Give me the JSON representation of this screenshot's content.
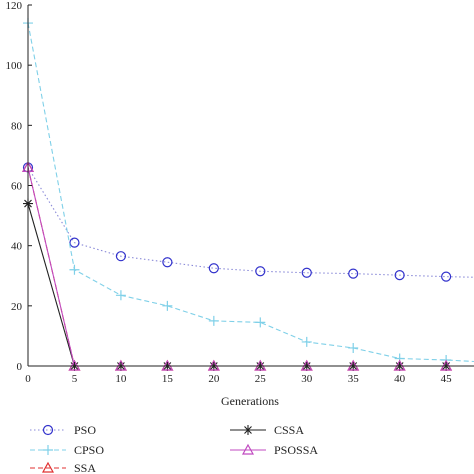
{
  "chart_data": {
    "type": "line",
    "title": "",
    "xlabel": "Generations",
    "ylabel": "",
    "xlim": [
      0,
      48
    ],
    "ylim": [
      0,
      120
    ],
    "xticks": [
      0,
      5,
      10,
      15,
      20,
      25,
      30,
      35,
      40,
      45
    ],
    "yticks": [
      0,
      20,
      40,
      60,
      80,
      100,
      120
    ],
    "grid": false,
    "legend_position": "bottom",
    "series": [
      {
        "name": "PSO",
        "color": "#8a8ad8",
        "line_style": "dotted",
        "marker": "circle",
        "marker_color": "#3333cc",
        "x": [
          0,
          5,
          10,
          15,
          20,
          25,
          30,
          35,
          40,
          45,
          48
        ],
        "y": [
          66,
          41,
          36.5,
          34.5,
          32.5,
          31.5,
          31,
          30.7,
          30.2,
          29.7,
          29.5
        ]
      },
      {
        "name": "CPSO",
        "color": "#7fd0e8",
        "line_style": "dashed",
        "marker": "plus",
        "marker_color": "#7fd0e8",
        "x": [
          0,
          5,
          10,
          15,
          20,
          25,
          30,
          35,
          40,
          45,
          48
        ],
        "y": [
          114,
          32,
          23.5,
          20,
          15,
          14.5,
          8,
          6,
          2.5,
          2,
          1.5
        ]
      },
      {
        "name": "SSA",
        "color": "#e03030",
        "line_style": "dashed",
        "marker": "triangle",
        "marker_color": "#e03030",
        "x": [
          0,
          5,
          10,
          15,
          20,
          25,
          30,
          35,
          40,
          45,
          48
        ],
        "y": [
          66,
          0,
          0,
          0,
          0,
          0,
          0,
          0,
          0,
          0,
          0
        ]
      },
      {
        "name": "CSSA",
        "color": "#222222",
        "line_style": "solid",
        "marker": "asterisk",
        "marker_color": "#222222",
        "x": [
          0,
          5,
          10,
          15,
          20,
          25,
          30,
          35,
          40,
          45,
          48
        ],
        "y": [
          54,
          0,
          0,
          0,
          0,
          0,
          0,
          0,
          0,
          0,
          0
        ]
      },
      {
        "name": "PSOSSA",
        "color": "#c04ac0",
        "line_style": "solid",
        "marker": "triangle",
        "marker_color": "#c04ac0",
        "x": [
          0,
          5,
          10,
          15,
          20,
          25,
          30,
          35,
          40,
          45,
          48
        ],
        "y": [
          66,
          0,
          0,
          0,
          0,
          0,
          0,
          0,
          0,
          0,
          0
        ]
      }
    ]
  }
}
